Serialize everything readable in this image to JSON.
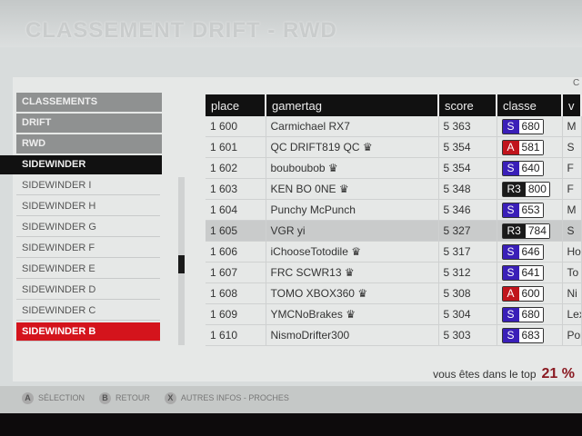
{
  "title": "CLASSEMENT DRIFT - RWD",
  "corner": "C",
  "menu": [
    "CLASSEMENTS",
    "DRIFT",
    "RWD",
    "SIDEWINDER"
  ],
  "submenu": [
    "SIDEWINDER I",
    "SIDEWINDER H",
    "SIDEWINDER G",
    "SIDEWINDER F",
    "SIDEWINDER E",
    "SIDEWINDER D",
    "SIDEWINDER C",
    "SIDEWINDER B"
  ],
  "columns": [
    "place",
    "gamertag",
    "score",
    "classe",
    "v"
  ],
  "rows": [
    {
      "place": "1 600",
      "gamertag": "Carmichael RX7",
      "crown": false,
      "score": "5 363",
      "class": "S",
      "pi": "680",
      "car": "M"
    },
    {
      "place": "1 601",
      "gamertag": "QC DRIFT819 QC",
      "crown": true,
      "score": "5 354",
      "class": "A",
      "pi": "581",
      "car": "S"
    },
    {
      "place": "1 602",
      "gamertag": "bouboubob",
      "crown": true,
      "score": "5 354",
      "class": "S",
      "pi": "640",
      "car": "F"
    },
    {
      "place": "1 603",
      "gamertag": "KEN BO 0NE",
      "crown": true,
      "score": "5 348",
      "class": "R3",
      "pi": "800",
      "car": "F"
    },
    {
      "place": "1 604",
      "gamertag": "Punchy McPunch",
      "crown": false,
      "score": "5 346",
      "class": "S",
      "pi": "653",
      "car": "M"
    },
    {
      "place": "1 605",
      "gamertag": "VGR yi",
      "crown": false,
      "score": "5 327",
      "class": "R3",
      "pi": "784",
      "car": "S"
    },
    {
      "place": "1 606",
      "gamertag": "iChooseTotodile",
      "crown": true,
      "score": "5 317",
      "class": "S",
      "pi": "646",
      "car": "Ho"
    },
    {
      "place": "1 607",
      "gamertag": "FRC SCWR13",
      "crown": true,
      "score": "5 312",
      "class": "S",
      "pi": "641",
      "car": "To"
    },
    {
      "place": "1 608",
      "gamertag": "TOMO XBOX360",
      "crown": true,
      "score": "5 308",
      "class": "A",
      "pi": "600",
      "car": "Ni"
    },
    {
      "place": "1 609",
      "gamertag": "YMCNoBrakes",
      "crown": true,
      "score": "5 304",
      "class": "S",
      "pi": "680",
      "car": "Lex"
    },
    {
      "place": "1 610",
      "gamertag": "NismoDrifter300",
      "crown": false,
      "score": "5 303",
      "class": "S",
      "pi": "683",
      "car": "Por"
    }
  ],
  "class_colors": {
    "S": "#3a1fb8",
    "A": "#c0141c",
    "R3": "#1a1a1a"
  },
  "top_label": "vous êtes dans le top",
  "top_value": "21 %",
  "footer": [
    {
      "key": "A",
      "label": "SÉLECTION"
    },
    {
      "key": "B",
      "label": "RETOUR"
    },
    {
      "key": "X",
      "label": "AUTRES INFOS - PROCHES"
    }
  ]
}
